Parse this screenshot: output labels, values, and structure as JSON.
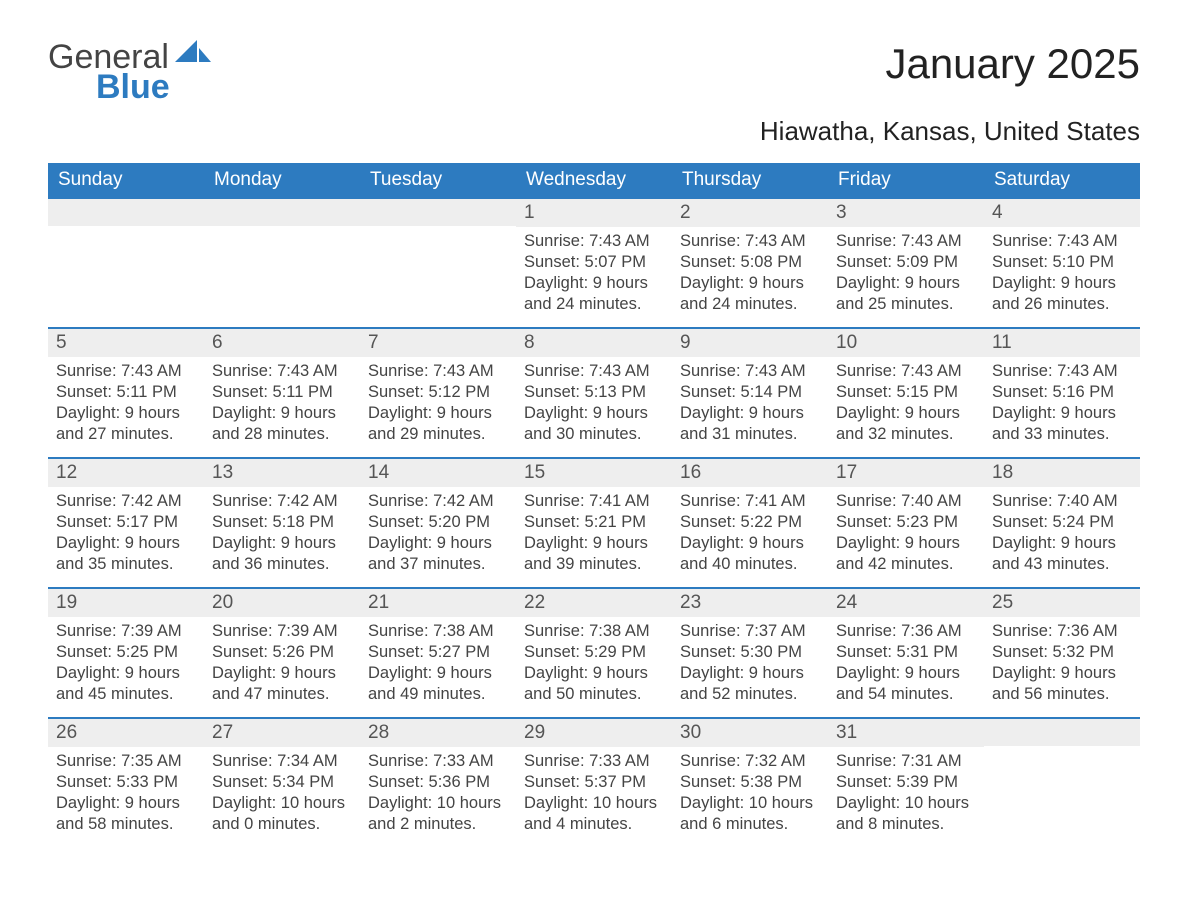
{
  "logo": {
    "text_general": "General",
    "text_blue": "Blue",
    "sail_color": "#2d7bc0"
  },
  "title": "January 2025",
  "location": "Hiawatha, Kansas, United States",
  "colors": {
    "header_bg": "#2d7bc0",
    "header_text": "#ffffff",
    "daynum_bg": "#eeeeee",
    "daynum_text": "#555555",
    "body_text": "#444444",
    "row_border": "#2d7bc0"
  },
  "day_headers": [
    "Sunday",
    "Monday",
    "Tuesday",
    "Wednesday",
    "Thursday",
    "Friday",
    "Saturday"
  ],
  "weeks": [
    [
      null,
      null,
      null,
      {
        "n": "1",
        "sunrise": "Sunrise: 7:43 AM",
        "sunset": "Sunset: 5:07 PM",
        "d1": "Daylight: 9 hours",
        "d2": "and 24 minutes."
      },
      {
        "n": "2",
        "sunrise": "Sunrise: 7:43 AM",
        "sunset": "Sunset: 5:08 PM",
        "d1": "Daylight: 9 hours",
        "d2": "and 24 minutes."
      },
      {
        "n": "3",
        "sunrise": "Sunrise: 7:43 AM",
        "sunset": "Sunset: 5:09 PM",
        "d1": "Daylight: 9 hours",
        "d2": "and 25 minutes."
      },
      {
        "n": "4",
        "sunrise": "Sunrise: 7:43 AM",
        "sunset": "Sunset: 5:10 PM",
        "d1": "Daylight: 9 hours",
        "d2": "and 26 minutes."
      }
    ],
    [
      {
        "n": "5",
        "sunrise": "Sunrise: 7:43 AM",
        "sunset": "Sunset: 5:11 PM",
        "d1": "Daylight: 9 hours",
        "d2": "and 27 minutes."
      },
      {
        "n": "6",
        "sunrise": "Sunrise: 7:43 AM",
        "sunset": "Sunset: 5:11 PM",
        "d1": "Daylight: 9 hours",
        "d2": "and 28 minutes."
      },
      {
        "n": "7",
        "sunrise": "Sunrise: 7:43 AM",
        "sunset": "Sunset: 5:12 PM",
        "d1": "Daylight: 9 hours",
        "d2": "and 29 minutes."
      },
      {
        "n": "8",
        "sunrise": "Sunrise: 7:43 AM",
        "sunset": "Sunset: 5:13 PM",
        "d1": "Daylight: 9 hours",
        "d2": "and 30 minutes."
      },
      {
        "n": "9",
        "sunrise": "Sunrise: 7:43 AM",
        "sunset": "Sunset: 5:14 PM",
        "d1": "Daylight: 9 hours",
        "d2": "and 31 minutes."
      },
      {
        "n": "10",
        "sunrise": "Sunrise: 7:43 AM",
        "sunset": "Sunset: 5:15 PM",
        "d1": "Daylight: 9 hours",
        "d2": "and 32 minutes."
      },
      {
        "n": "11",
        "sunrise": "Sunrise: 7:43 AM",
        "sunset": "Sunset: 5:16 PM",
        "d1": "Daylight: 9 hours",
        "d2": "and 33 minutes."
      }
    ],
    [
      {
        "n": "12",
        "sunrise": "Sunrise: 7:42 AM",
        "sunset": "Sunset: 5:17 PM",
        "d1": "Daylight: 9 hours",
        "d2": "and 35 minutes."
      },
      {
        "n": "13",
        "sunrise": "Sunrise: 7:42 AM",
        "sunset": "Sunset: 5:18 PM",
        "d1": "Daylight: 9 hours",
        "d2": "and 36 minutes."
      },
      {
        "n": "14",
        "sunrise": "Sunrise: 7:42 AM",
        "sunset": "Sunset: 5:20 PM",
        "d1": "Daylight: 9 hours",
        "d2": "and 37 minutes."
      },
      {
        "n": "15",
        "sunrise": "Sunrise: 7:41 AM",
        "sunset": "Sunset: 5:21 PM",
        "d1": "Daylight: 9 hours",
        "d2": "and 39 minutes."
      },
      {
        "n": "16",
        "sunrise": "Sunrise: 7:41 AM",
        "sunset": "Sunset: 5:22 PM",
        "d1": "Daylight: 9 hours",
        "d2": "and 40 minutes."
      },
      {
        "n": "17",
        "sunrise": "Sunrise: 7:40 AM",
        "sunset": "Sunset: 5:23 PM",
        "d1": "Daylight: 9 hours",
        "d2": "and 42 minutes."
      },
      {
        "n": "18",
        "sunrise": "Sunrise: 7:40 AM",
        "sunset": "Sunset: 5:24 PM",
        "d1": "Daylight: 9 hours",
        "d2": "and 43 minutes."
      }
    ],
    [
      {
        "n": "19",
        "sunrise": "Sunrise: 7:39 AM",
        "sunset": "Sunset: 5:25 PM",
        "d1": "Daylight: 9 hours",
        "d2": "and 45 minutes."
      },
      {
        "n": "20",
        "sunrise": "Sunrise: 7:39 AM",
        "sunset": "Sunset: 5:26 PM",
        "d1": "Daylight: 9 hours",
        "d2": "and 47 minutes."
      },
      {
        "n": "21",
        "sunrise": "Sunrise: 7:38 AM",
        "sunset": "Sunset: 5:27 PM",
        "d1": "Daylight: 9 hours",
        "d2": "and 49 minutes."
      },
      {
        "n": "22",
        "sunrise": "Sunrise: 7:38 AM",
        "sunset": "Sunset: 5:29 PM",
        "d1": "Daylight: 9 hours",
        "d2": "and 50 minutes."
      },
      {
        "n": "23",
        "sunrise": "Sunrise: 7:37 AM",
        "sunset": "Sunset: 5:30 PM",
        "d1": "Daylight: 9 hours",
        "d2": "and 52 minutes."
      },
      {
        "n": "24",
        "sunrise": "Sunrise: 7:36 AM",
        "sunset": "Sunset: 5:31 PM",
        "d1": "Daylight: 9 hours",
        "d2": "and 54 minutes."
      },
      {
        "n": "25",
        "sunrise": "Sunrise: 7:36 AM",
        "sunset": "Sunset: 5:32 PM",
        "d1": "Daylight: 9 hours",
        "d2": "and 56 minutes."
      }
    ],
    [
      {
        "n": "26",
        "sunrise": "Sunrise: 7:35 AM",
        "sunset": "Sunset: 5:33 PM",
        "d1": "Daylight: 9 hours",
        "d2": "and 58 minutes."
      },
      {
        "n": "27",
        "sunrise": "Sunrise: 7:34 AM",
        "sunset": "Sunset: 5:34 PM",
        "d1": "Daylight: 10 hours",
        "d2": "and 0 minutes."
      },
      {
        "n": "28",
        "sunrise": "Sunrise: 7:33 AM",
        "sunset": "Sunset: 5:36 PM",
        "d1": "Daylight: 10 hours",
        "d2": "and 2 minutes."
      },
      {
        "n": "29",
        "sunrise": "Sunrise: 7:33 AM",
        "sunset": "Sunset: 5:37 PM",
        "d1": "Daylight: 10 hours",
        "d2": "and 4 minutes."
      },
      {
        "n": "30",
        "sunrise": "Sunrise: 7:32 AM",
        "sunset": "Sunset: 5:38 PM",
        "d1": "Daylight: 10 hours",
        "d2": "and 6 minutes."
      },
      {
        "n": "31",
        "sunrise": "Sunrise: 7:31 AM",
        "sunset": "Sunset: 5:39 PM",
        "d1": "Daylight: 10 hours",
        "d2": "and 8 minutes."
      },
      null
    ]
  ]
}
